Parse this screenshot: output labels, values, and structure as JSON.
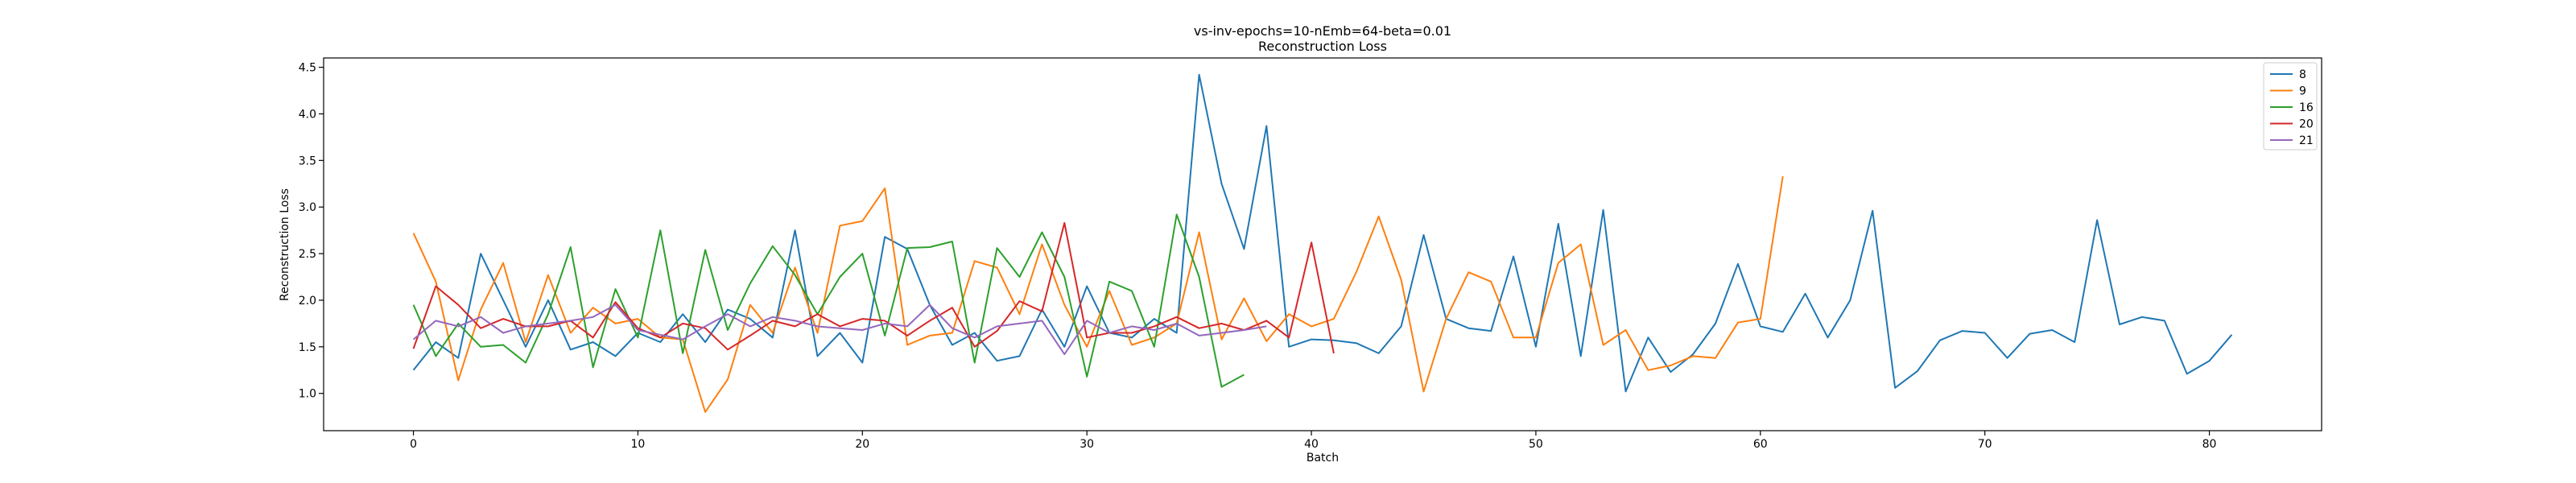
{
  "chart_data": {
    "type": "line",
    "title": "vs-inv-epochs=10-nEmb=64-beta=0.01",
    "subtitle": "Reconstruction Loss",
    "xlabel": "Batch",
    "ylabel": "Reconstruction Loss",
    "xlim": [
      -4,
      85
    ],
    "ylim": [
      0.6,
      4.6
    ],
    "xticks": [
      0,
      10,
      20,
      30,
      40,
      50,
      60,
      70,
      80
    ],
    "yticks": [
      1.0,
      1.5,
      2.0,
      2.5,
      3.0,
      3.5,
      4.0,
      4.5
    ],
    "ytick_labels": [
      "1.0",
      "1.5",
      "2.0",
      "2.5",
      "3.0",
      "3.5",
      "4.0",
      "4.5"
    ],
    "grid": false,
    "legend": "top-right",
    "series": [
      {
        "name": "8",
        "color": "#1f77b4",
        "values": [
          1.25,
          1.55,
          1.38,
          2.5,
          2.0,
          1.5,
          2.0,
          1.47,
          1.55,
          1.4,
          1.65,
          1.55,
          1.85,
          1.55,
          1.9,
          1.8,
          1.6,
          2.75,
          1.4,
          1.65,
          1.33,
          2.68,
          2.55,
          1.95,
          1.52,
          1.65,
          1.35,
          1.4,
          1.9,
          1.5,
          2.15,
          1.65,
          1.6,
          1.8,
          1.65,
          4.42,
          3.25,
          2.55,
          3.87,
          1.5,
          1.58,
          1.57,
          1.54,
          1.43,
          1.72,
          2.7,
          1.8,
          1.7,
          1.67,
          2.47,
          1.5,
          2.82,
          1.4,
          2.97,
          1.02,
          1.6,
          1.23,
          1.42,
          1.75,
          2.39,
          1.72,
          1.66,
          2.07,
          1.6,
          2.0,
          2.96,
          1.06,
          1.24,
          1.57,
          1.67,
          1.65,
          1.38,
          1.64,
          1.68,
          1.55,
          2.86,
          1.74,
          1.82,
          1.78,
          1.21,
          1.35,
          1.63
        ]
      },
      {
        "name": "9",
        "color": "#ff7f0e",
        "values": [
          2.72,
          2.2,
          1.14,
          1.9,
          2.4,
          1.55,
          2.27,
          1.65,
          1.92,
          1.75,
          1.8,
          1.6,
          1.58,
          0.8,
          1.15,
          1.95,
          1.65,
          2.35,
          1.65,
          2.8,
          2.85,
          3.2,
          1.52,
          1.62,
          1.65,
          2.42,
          2.35,
          1.85,
          2.6,
          1.95,
          1.5,
          2.1,
          1.52,
          1.6,
          1.75,
          2.73,
          1.58,
          2.02,
          1.56,
          1.85,
          1.72,
          1.8,
          2.3,
          2.9,
          2.22,
          1.02,
          1.8,
          2.3,
          2.2,
          1.6,
          1.6,
          2.4,
          2.6,
          1.52,
          1.68,
          1.25,
          1.3,
          1.4,
          1.38,
          1.76,
          1.8,
          3.33
        ]
      },
      {
        "name": "16",
        "color": "#2ca02c",
        "values": [
          1.95,
          1.4,
          1.75,
          1.5,
          1.52,
          1.33,
          1.85,
          2.57,
          1.28,
          2.12,
          1.6,
          2.75,
          1.43,
          2.54,
          1.68,
          2.18,
          2.58,
          2.27,
          1.85,
          2.25,
          2.5,
          1.62,
          2.56,
          2.57,
          2.63,
          1.33,
          2.56,
          2.25,
          2.73,
          2.25,
          1.18,
          2.2,
          2.1,
          1.5,
          2.92,
          2.25,
          1.07,
          1.2
        ]
      },
      {
        "name": "20",
        "color": "#d62728",
        "values": [
          1.48,
          2.15,
          1.95,
          1.7,
          1.8,
          1.72,
          1.72,
          1.78,
          1.6,
          1.98,
          1.7,
          1.6,
          1.75,
          1.7,
          1.47,
          1.62,
          1.78,
          1.72,
          1.85,
          1.72,
          1.8,
          1.78,
          1.62,
          1.78,
          1.92,
          1.5,
          1.67,
          1.99,
          1.88,
          2.83,
          1.6,
          1.65,
          1.65,
          1.72,
          1.82,
          1.7,
          1.75,
          1.68,
          1.78,
          1.6,
          2.62,
          1.43
        ]
      },
      {
        "name": "21",
        "color": "#9467bd",
        "values": [
          1.58,
          1.78,
          1.72,
          1.82,
          1.65,
          1.72,
          1.75,
          1.78,
          1.82,
          1.95,
          1.68,
          1.63,
          1.58,
          1.72,
          1.85,
          1.72,
          1.82,
          1.78,
          1.72,
          1.7,
          1.68,
          1.75,
          1.72,
          1.95,
          1.7,
          1.6,
          1.72,
          1.75,
          1.78,
          1.42,
          1.78,
          1.65,
          1.72,
          1.68,
          1.75,
          1.62,
          1.65,
          1.68,
          1.72
        ]
      }
    ]
  }
}
